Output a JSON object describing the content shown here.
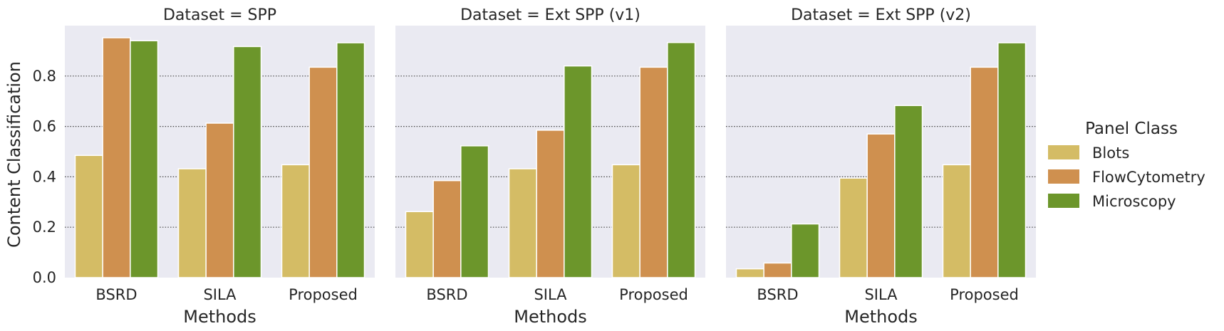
{
  "chart_data": {
    "type": "bar",
    "ylabel": "Content Classification",
    "xlabel": "Methods",
    "ylim": [
      0,
      1.0
    ],
    "yticks": [
      "0.0",
      "0.2",
      "0.4",
      "0.6",
      "0.8"
    ],
    "grid": "horizontal dotted",
    "categories": [
      "BSRD",
      "SILA",
      "Proposed"
    ],
    "legend": {
      "title": "Panel Class",
      "placement": "right",
      "entries": [
        "Blots",
        "FlowCytometry",
        "Microscopy"
      ]
    },
    "colors": {
      "Blots": "#D4BC65",
      "FlowCytometry": "#CF904F",
      "Microscopy": "#6C962B",
      "panel_background": "#EAEAF2"
    },
    "panels": [
      {
        "title": "Dataset = SPP",
        "series": [
          {
            "name": "Blots",
            "values": [
              0.485,
              0.432,
              0.448
            ]
          },
          {
            "name": "FlowCytometry",
            "values": [
              0.952,
              0.613,
              0.835
            ]
          },
          {
            "name": "Microscopy",
            "values": [
              0.94,
              0.917,
              0.932
            ]
          }
        ]
      },
      {
        "title": "Dataset = Ext SPP (v1)",
        "series": [
          {
            "name": "Blots",
            "values": [
              0.262,
              0.432,
              0.448
            ]
          },
          {
            "name": "FlowCytometry",
            "values": [
              0.385,
              0.585,
              0.835
            ]
          },
          {
            "name": "Microscopy",
            "values": [
              0.523,
              0.84,
              0.933
            ]
          }
        ]
      },
      {
        "title": "Dataset = Ext SPP (v2)",
        "series": [
          {
            "name": "Blots",
            "values": [
              0.035,
              0.395,
              0.448
            ]
          },
          {
            "name": "FlowCytometry",
            "values": [
              0.058,
              0.57,
              0.835
            ]
          },
          {
            "name": "Microscopy",
            "values": [
              0.213,
              0.683,
              0.932
            ]
          }
        ]
      }
    ]
  }
}
